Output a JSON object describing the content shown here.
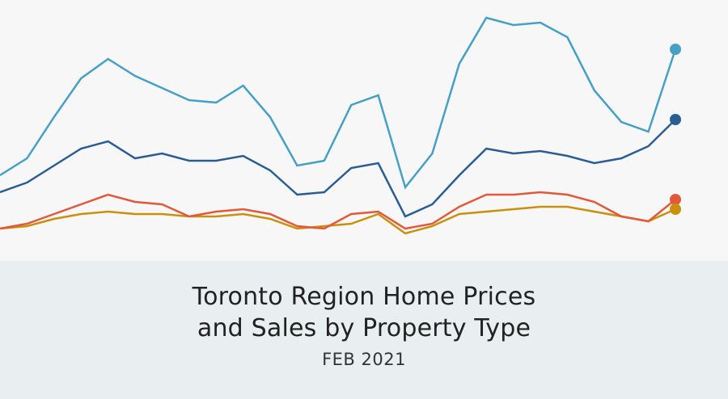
{
  "title": {
    "line1": "Toronto Region Home Prices",
    "line2": "and Sales by Property Type"
  },
  "subtitle": "FEB 2021",
  "colors": {
    "chart_bg": "#f7f7f7",
    "band_bg": "#e9eef0"
  },
  "chart_data": {
    "type": "line",
    "title": "",
    "xlabel": "",
    "ylabel": "",
    "ylim": [
      0,
      100
    ],
    "grid": false,
    "legend": "none",
    "x": [
      0,
      1,
      2,
      3,
      4,
      5,
      6,
      7,
      8,
      9,
      10,
      11,
      12,
      13,
      14,
      15,
      16,
      17,
      18,
      19,
      20,
      21,
      22,
      23,
      24,
      25
    ],
    "series": [
      {
        "color": "#46a0c6",
        "end_marker": true,
        "values": [
          31,
          38,
          55,
          71,
          79,
          72,
          67,
          62,
          61,
          68,
          55,
          35,
          37,
          60,
          64,
          26,
          40,
          77,
          96,
          93,
          94,
          88,
          66,
          53,
          49,
          83
        ]
      },
      {
        "color": "#2b5d95",
        "end_marker": true,
        "values": [
          24,
          28,
          35,
          42,
          45,
          38,
          40,
          37,
          37,
          39,
          33,
          23,
          24,
          34,
          36,
          14,
          19,
          31,
          42,
          40,
          41,
          39,
          36,
          38,
          43,
          54
        ]
      },
      {
        "color": "#e1593b",
        "end_marker": true,
        "values": [
          9,
          11,
          15,
          19,
          23,
          20,
          19,
          14,
          16,
          17,
          15,
          10,
          9,
          15,
          16,
          9,
          11,
          18,
          23,
          23,
          24,
          23,
          20,
          14,
          12,
          21
        ]
      },
      {
        "color": "#c9900e",
        "end_marker": true,
        "values": [
          9,
          10,
          13,
          15,
          16,
          15,
          15,
          14,
          14,
          15,
          13,
          9,
          10,
          11,
          15,
          7,
          10,
          15,
          16,
          17,
          18,
          18,
          16,
          14,
          12,
          17
        ]
      }
    ]
  }
}
